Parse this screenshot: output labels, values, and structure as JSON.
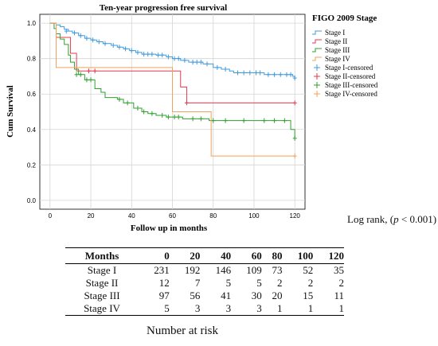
{
  "chart_data": {
    "type": "line",
    "title": "Ten-year progression free survival",
    "xlabel": "Follow up in months",
    "ylabel": "Cum Survival",
    "xlim": [
      -5,
      125
    ],
    "ylim": [
      -0.05,
      1.05
    ],
    "xticks": [
      0,
      20,
      40,
      60,
      80,
      100,
      120
    ],
    "yticks": [
      0.0,
      0.2,
      0.4,
      0.6,
      0.8,
      1.0
    ],
    "grid": true,
    "legend_title": "FIGO 2009 Stage",
    "legend_position": "right",
    "series": [
      {
        "name": "Stage I",
        "color": "#3f9be0",
        "steps": [
          [
            0,
            1.0
          ],
          [
            3,
            0.99
          ],
          [
            5,
            0.98
          ],
          [
            7,
            0.965
          ],
          [
            9,
            0.955
          ],
          [
            11,
            0.945
          ],
          [
            14,
            0.93
          ],
          [
            17,
            0.915
          ],
          [
            20,
            0.905
          ],
          [
            23,
            0.895
          ],
          [
            26,
            0.885
          ],
          [
            30,
            0.875
          ],
          [
            33,
            0.865
          ],
          [
            36,
            0.855
          ],
          [
            39,
            0.845
          ],
          [
            42,
            0.835
          ],
          [
            45,
            0.825
          ],
          [
            52,
            0.82
          ],
          [
            57,
            0.81
          ],
          [
            60,
            0.8
          ],
          [
            64,
            0.79
          ],
          [
            68,
            0.78
          ],
          [
            75,
            0.77
          ],
          [
            80,
            0.75
          ],
          [
            84,
            0.74
          ],
          [
            88,
            0.73
          ],
          [
            90,
            0.72
          ],
          [
            105,
            0.71
          ],
          [
            119,
            0.7
          ],
          [
            120,
            0.69
          ]
        ],
        "censored": [
          [
            8,
            0.955
          ],
          [
            12,
            0.945
          ],
          [
            15,
            0.93
          ],
          [
            18,
            0.915
          ],
          [
            21,
            0.905
          ],
          [
            24,
            0.895
          ],
          [
            27,
            0.885
          ],
          [
            31,
            0.875
          ],
          [
            34,
            0.865
          ],
          [
            37,
            0.855
          ],
          [
            40,
            0.845
          ],
          [
            43,
            0.835
          ],
          [
            46,
            0.825
          ],
          [
            48,
            0.825
          ],
          [
            50,
            0.825
          ],
          [
            53,
            0.82
          ],
          [
            55,
            0.82
          ],
          [
            58,
            0.81
          ],
          [
            61,
            0.8
          ],
          [
            63,
            0.8
          ],
          [
            66,
            0.79
          ],
          [
            70,
            0.78
          ],
          [
            72,
            0.78
          ],
          [
            74,
            0.78
          ],
          [
            77,
            0.77
          ],
          [
            82,
            0.75
          ],
          [
            86,
            0.74
          ],
          [
            92,
            0.72
          ],
          [
            95,
            0.72
          ],
          [
            98,
            0.72
          ],
          [
            101,
            0.72
          ],
          [
            103,
            0.72
          ],
          [
            107,
            0.71
          ],
          [
            110,
            0.71
          ],
          [
            113,
            0.71
          ],
          [
            116,
            0.71
          ],
          [
            118,
            0.71
          ],
          [
            120,
            0.69
          ]
        ],
        "end": 120
      },
      {
        "name": "Stage II",
        "color": "#e8394e",
        "steps": [
          [
            0,
            1.0
          ],
          [
            3,
            0.92
          ],
          [
            10,
            0.83
          ],
          [
            13,
            0.73
          ],
          [
            64,
            0.64
          ],
          [
            67,
            0.55
          ]
        ],
        "censored": [
          [
            19,
            0.73
          ],
          [
            22,
            0.73
          ],
          [
            67,
            0.55
          ],
          [
            120,
            0.55
          ]
        ],
        "end": 120
      },
      {
        "name": "Stage III",
        "color": "#2ea12e",
        "steps": [
          [
            0,
            1.0
          ],
          [
            2,
            0.97
          ],
          [
            3,
            0.94
          ],
          [
            5,
            0.91
          ],
          [
            7,
            0.88
          ],
          [
            9,
            0.82
          ],
          [
            10,
            0.78
          ],
          [
            12,
            0.74
          ],
          [
            14,
            0.71
          ],
          [
            17,
            0.68
          ],
          [
            22,
            0.63
          ],
          [
            25,
            0.61
          ],
          [
            27,
            0.58
          ],
          [
            33,
            0.57
          ],
          [
            36,
            0.55
          ],
          [
            41,
            0.52
          ],
          [
            45,
            0.5
          ],
          [
            48,
            0.49
          ],
          [
            52,
            0.48
          ],
          [
            57,
            0.47
          ],
          [
            65,
            0.46
          ],
          [
            78,
            0.45
          ],
          [
            118,
            0.4
          ],
          [
            120,
            0.35
          ]
        ],
        "censored": [
          [
            13,
            0.71
          ],
          [
            15,
            0.71
          ],
          [
            18,
            0.68
          ],
          [
            20,
            0.68
          ],
          [
            34,
            0.57
          ],
          [
            38,
            0.55
          ],
          [
            43,
            0.52
          ],
          [
            46,
            0.5
          ],
          [
            50,
            0.49
          ],
          [
            55,
            0.48
          ],
          [
            58,
            0.47
          ],
          [
            61,
            0.47
          ],
          [
            63,
            0.47
          ],
          [
            70,
            0.46
          ],
          [
            74,
            0.46
          ],
          [
            80,
            0.45
          ],
          [
            86,
            0.45
          ],
          [
            95,
            0.45
          ],
          [
            105,
            0.45
          ],
          [
            110,
            0.45
          ],
          [
            115,
            0.45
          ],
          [
            120,
            0.35
          ]
        ],
        "end": 120
      },
      {
        "name": "Stage IV",
        "color": "#f5a05a",
        "steps": [
          [
            0,
            1.0
          ],
          [
            3,
            0.75
          ],
          [
            60,
            0.5
          ],
          [
            79,
            0.25
          ]
        ],
        "censored": [
          [
            120,
            0.25
          ]
        ],
        "end": 120
      }
    ],
    "legend_entries": [
      "Stage I",
      "Stage II",
      "Stage III",
      "Stage IV",
      "Stage I-censored",
      "Stage II-censored",
      "Stage III-censored",
      "Stage IV-censored"
    ]
  },
  "annotation": {
    "prefix": "Log rank, (",
    "p": "p",
    "rest": " < 0.001)"
  },
  "risk_table": {
    "caption": "Number at risk",
    "headers": [
      "Months",
      "0",
      "20",
      "40",
      "60",
      "80",
      "100",
      "120"
    ],
    "rows": [
      [
        "Stage I",
        "231",
        "192",
        "146",
        "109",
        "73",
        "52",
        "35"
      ],
      [
        "Stage II",
        "12",
        "7",
        "5",
        "5",
        "2",
        "2",
        "2"
      ],
      [
        "Stage III",
        "97",
        "56",
        "41",
        "30",
        "20",
        "15",
        "11"
      ],
      [
        "Stage IV",
        "5",
        "3",
        "3",
        "3",
        "1",
        "1",
        "1"
      ]
    ]
  }
}
